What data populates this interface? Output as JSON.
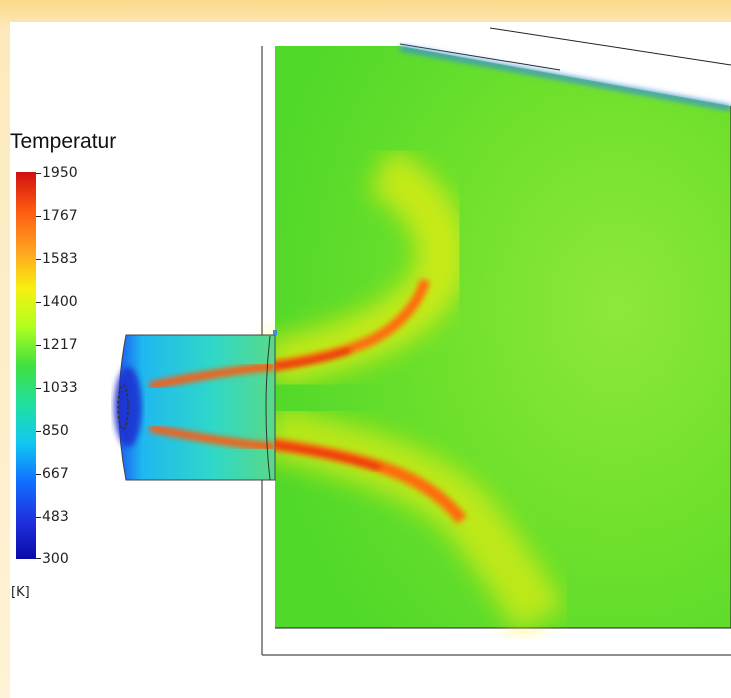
{
  "legend": {
    "title": "Temperatur",
    "unit": "[K]",
    "ticks": [
      "1950",
      "1767",
      "1583",
      "1400",
      "1217",
      "1033",
      "850",
      "667",
      "483",
      "300"
    ],
    "colors": {
      "min": "#0a0aa8",
      "low": "#10c8f0",
      "mid": "#40e040",
      "high": "#f8f010",
      "max": "#d01010"
    }
  },
  "field": {
    "ambient_color": "#66e02a",
    "wall_color": "#3b8fd8",
    "nozzle_color": "#2a7cf0",
    "flame_color": "#ff5a10"
  }
}
